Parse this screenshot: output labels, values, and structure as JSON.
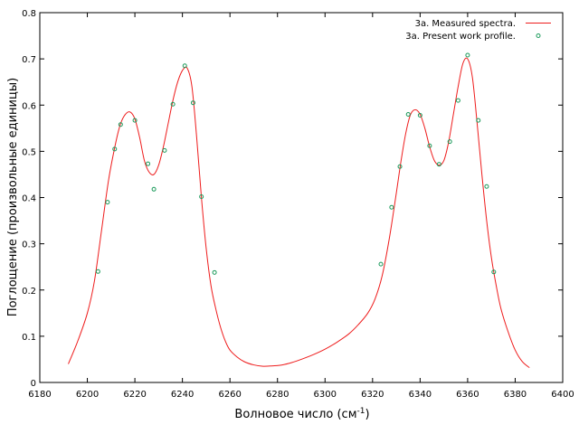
{
  "chart_data": {
    "type": "line",
    "xlabel": "Волновое число (см",
    "xlabel_sup": "-1",
    "xlabel_suffix": ")",
    "ylabel": "Поглощение (произвольные единицы)",
    "xlim": [
      6180,
      6400
    ],
    "ylim": [
      0,
      0.8
    ],
    "x_ticks": [
      6180,
      6200,
      6220,
      6240,
      6260,
      6280,
      6300,
      6320,
      6340,
      6360,
      6380,
      6400
    ],
    "y_ticks": [
      0,
      0.1,
      0.2,
      0.3,
      0.4,
      0.5,
      0.6,
      0.7,
      0.8
    ],
    "grid": false,
    "legend_position": "top-right",
    "series": [
      {
        "name": "3a. Measured spectra.",
        "style": "line",
        "color": "#ee1c1c",
        "x": [
          6192,
          6196,
          6200,
          6203,
          6206,
          6209,
          6212,
          6214,
          6216,
          6218,
          6220,
          6222,
          6224,
          6226,
          6228,
          6230,
          6232,
          6234,
          6236,
          6238,
          6240,
          6242,
          6244,
          6246,
          6248,
          6250,
          6252,
          6254,
          6256,
          6258,
          6260,
          6263,
          6266,
          6270,
          6274,
          6278,
          6282,
          6286,
          6290,
          6295,
          6300,
          6305,
          6310,
          6314,
          6318,
          6321,
          6324,
          6327,
          6330,
          6332,
          6334,
          6336,
          6338,
          6340,
          6342,
          6344,
          6346,
          6348,
          6350,
          6352,
          6354,
          6356,
          6358,
          6360,
          6362,
          6364,
          6366,
          6368,
          6370,
          6372,
          6374,
          6377,
          6380,
          6383,
          6386
        ],
        "y": [
          0.04,
          0.09,
          0.15,
          0.22,
          0.33,
          0.44,
          0.52,
          0.56,
          0.58,
          0.585,
          0.57,
          0.53,
          0.48,
          0.455,
          0.45,
          0.47,
          0.51,
          0.56,
          0.61,
          0.65,
          0.675,
          0.68,
          0.64,
          0.53,
          0.4,
          0.29,
          0.21,
          0.16,
          0.12,
          0.09,
          0.07,
          0.055,
          0.045,
          0.038,
          0.035,
          0.036,
          0.038,
          0.043,
          0.05,
          0.06,
          0.072,
          0.087,
          0.105,
          0.125,
          0.15,
          0.18,
          0.23,
          0.31,
          0.41,
          0.48,
          0.54,
          0.58,
          0.59,
          0.58,
          0.55,
          0.51,
          0.48,
          0.47,
          0.48,
          0.52,
          0.58,
          0.64,
          0.69,
          0.7,
          0.66,
          0.56,
          0.45,
          0.35,
          0.27,
          0.21,
          0.16,
          0.11,
          0.07,
          0.045,
          0.032
        ]
      },
      {
        "name": "3a. Present work profile.",
        "style": "points",
        "color": "#1a9a5a",
        "x": [
          6204.5,
          6208.5,
          6211.5,
          6214,
          6220,
          6225.5,
          6228,
          6232.5,
          6236,
          6241,
          6244.5,
          6248,
          6253.5,
          6323.5,
          6328,
          6331.5,
          6335,
          6340,
          6344,
          6348,
          6352.5,
          6356,
          6360,
          6364.5,
          6368,
          6371
        ],
        "y": [
          0.24,
          0.39,
          0.505,
          0.558,
          0.567,
          0.473,
          0.418,
          0.502,
          0.602,
          0.685,
          0.605,
          0.402,
          0.238,
          0.256,
          0.379,
          0.467,
          0.58,
          0.578,
          0.512,
          0.472,
          0.521,
          0.61,
          0.708,
          0.567,
          0.424,
          0.239
        ]
      }
    ]
  }
}
